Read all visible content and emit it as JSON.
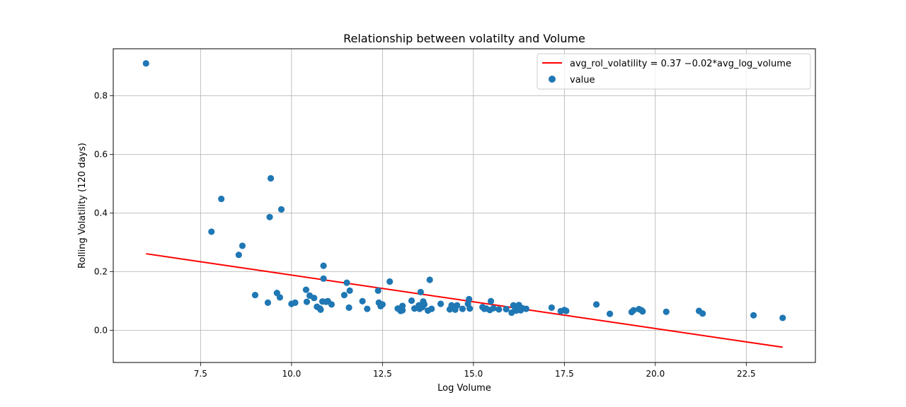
{
  "chart_data": {
    "type": "scatter",
    "title": "Relationship between volatilty and Volume",
    "xlabel": "Log Volume",
    "ylabel": "Rolling Volatility (120 days)",
    "xlim": [
      5.1,
      24.4
    ],
    "ylim": [
      -0.11,
      0.96
    ],
    "xticks": [
      7.5,
      10.0,
      12.5,
      15.0,
      17.5,
      20.0,
      22.5
    ],
    "xtick_labels": [
      "7.5",
      "10.0",
      "12.5",
      "15.0",
      "17.5",
      "20.0",
      "22.5"
    ],
    "yticks": [
      0.0,
      0.2,
      0.4,
      0.6,
      0.8
    ],
    "ytick_labels": [
      "0.0",
      "0.2",
      "0.4",
      "0.6",
      "0.8"
    ],
    "grid": true,
    "legend_position": "top-right",
    "colors": {
      "scatter": "#1f77b4",
      "line": "#ff0000"
    },
    "series": [
      {
        "name": "avg_rol_volatility = 0.37 −0.02*avg_log_volume",
        "kind": "line",
        "x": [
          6.0,
          23.5
        ],
        "y": [
          0.261,
          -0.058
        ]
      },
      {
        "name": "value",
        "kind": "scatter",
        "x": [
          6.0,
          7.8,
          8.07,
          8.55,
          8.65,
          9.0,
          9.35,
          9.4,
          9.43,
          9.6,
          9.68,
          9.72,
          10.0,
          10.1,
          10.4,
          10.42,
          10.5,
          10.62,
          10.7,
          10.78,
          10.8,
          10.85,
          10.88,
          10.88,
          10.95,
          11.0,
          11.1,
          11.45,
          11.52,
          11.6,
          11.58,
          11.95,
          12.08,
          12.38,
          12.4,
          12.45,
          12.5,
          12.7,
          12.92,
          13.0,
          13.05,
          13.05,
          13.3,
          13.38,
          13.5,
          13.52,
          13.55,
          13.6,
          13.62,
          13.65,
          13.75,
          13.8,
          13.85,
          14.1,
          14.35,
          14.4,
          14.5,
          14.55,
          14.7,
          14.85,
          14.9,
          14.88,
          15.25,
          15.3,
          15.35,
          15.45,
          15.48,
          15.55,
          15.7,
          15.9,
          16.05,
          16.1,
          16.15,
          16.18,
          16.22,
          16.25,
          16.3,
          16.35,
          16.45,
          17.15,
          17.4,
          17.5,
          17.55,
          18.38,
          18.75,
          19.35,
          19.4,
          19.55,
          19.62,
          19.65,
          20.3,
          21.2,
          21.3,
          22.7,
          23.5
        ],
        "y": [
          0.91,
          0.336,
          0.448,
          0.257,
          0.288,
          0.12,
          0.094,
          0.386,
          0.518,
          0.127,
          0.112,
          0.412,
          0.09,
          0.094,
          0.138,
          0.097,
          0.118,
          0.11,
          0.08,
          0.074,
          0.07,
          0.098,
          0.176,
          0.22,
          0.097,
          0.099,
          0.088,
          0.12,
          0.162,
          0.135,
          0.077,
          0.099,
          0.073,
          0.135,
          0.094,
          0.082,
          0.088,
          0.166,
          0.074,
          0.066,
          0.068,
          0.083,
          0.101,
          0.074,
          0.085,
          0.073,
          0.13,
          0.079,
          0.098,
          0.088,
          0.067,
          0.172,
          0.073,
          0.09,
          0.071,
          0.085,
          0.07,
          0.085,
          0.073,
          0.09,
          0.074,
          0.106,
          0.079,
          0.073,
          0.074,
          0.069,
          0.099,
          0.075,
          0.071,
          0.072,
          0.06,
          0.085,
          0.073,
          0.067,
          0.072,
          0.086,
          0.068,
          0.075,
          0.073,
          0.077,
          0.065,
          0.069,
          0.066,
          0.088,
          0.056,
          0.062,
          0.068,
          0.072,
          0.068,
          0.064,
          0.063,
          0.066,
          0.057,
          0.051,
          0.042
        ]
      }
    ]
  }
}
